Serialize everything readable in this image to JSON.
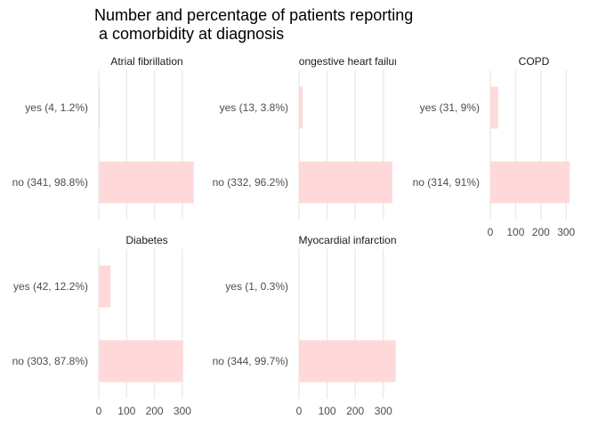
{
  "chart_data": {
    "type": "bar",
    "orientation": "horizontal",
    "title": "Number and percentage of patients reporting\n a comorbidity at diagnosis",
    "xlabel": "",
    "ylabel": "",
    "xlim": [
      0,
      345
    ],
    "x_ticks": [
      0,
      100,
      200,
      300
    ],
    "grid": true,
    "legend": "none",
    "bar_color": "#ffd9d9",
    "panels": [
      {
        "name": "Atrial fibrillation",
        "categories": [
          "yes (4, 1.2%)",
          "no (341, 98.8%)"
        ],
        "values": [
          4,
          341
        ],
        "show_x_axis": false
      },
      {
        "name": "Congestive heart failure",
        "categories": [
          "yes (13, 3.8%)",
          "no (332, 96.2%)"
        ],
        "values": [
          13,
          332
        ],
        "show_x_axis": false
      },
      {
        "name": "COPD",
        "categories": [
          "yes (31, 9%)",
          "no (314, 91%)"
        ],
        "values": [
          31,
          314
        ],
        "show_x_axis": true
      },
      {
        "name": "Diabetes",
        "categories": [
          "yes (42, 12.2%)",
          "no (303, 87.8%)"
        ],
        "values": [
          42,
          303
        ],
        "show_x_axis": true
      },
      {
        "name": "Myocardial infarction",
        "categories": [
          "yes (1, 0.3%)",
          "no (344, 99.7%)"
        ],
        "values": [
          1,
          344
        ],
        "show_x_axis": true
      }
    ]
  }
}
